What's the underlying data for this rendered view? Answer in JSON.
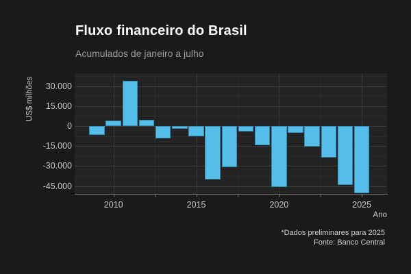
{
  "header": {
    "title": "Fluxo financeiro do Brasil",
    "subtitle": "Acumulados de janeiro a julho"
  },
  "caption": {
    "note": "*Dados preliminares para 2025",
    "source": "Fonte: Banco Central"
  },
  "chart_data": {
    "type": "bar",
    "title": "Fluxo financeiro do Brasil",
    "subtitle": "Acumulados de janeiro a julho",
    "xlabel": "Ano",
    "ylabel": "US$ milhões",
    "categories": [
      2009,
      2010,
      2011,
      2012,
      2013,
      2014,
      2015,
      2016,
      2017,
      2018,
      2019,
      2020,
      2021,
      2022,
      2023,
      2024,
      2025
    ],
    "values": [
      -6500,
      4100,
      34000,
      4600,
      -9000,
      -2000,
      -7500,
      -40000,
      -31000,
      -4100,
      -14400,
      -46000,
      -5100,
      -15400,
      -23400,
      -44300,
      -50200
    ],
    "ylim": [
      -50900,
      39600
    ],
    "xlim": [
      2008.65,
      2025.9
    ],
    "grid": true,
    "legend": false,
    "y_major_ticks": [
      {
        "label": "30.000",
        "value": 30000
      },
      {
        "label": "15.000",
        "value": 15000
      },
      {
        "label": "0",
        "value": 0
      },
      {
        "label": "-15.000",
        "value": -15000
      },
      {
        "label": "-30.000",
        "value": -30000
      },
      {
        "label": "-45.000",
        "value": -45000
      }
    ],
    "y_minor_gridlines": [
      37500,
      22500,
      7500,
      -7500,
      -22500,
      -37500
    ],
    "x_major_ticks": [
      {
        "label": "2010",
        "value": 2010
      },
      {
        "label": "2015",
        "value": 2015
      },
      {
        "label": "2020",
        "value": 2020
      },
      {
        "label": "2025",
        "value": 2025
      }
    ],
    "x_minor_ticks": [
      2012.5,
      2017.5,
      2022.5
    ],
    "bar_color": "#55beea"
  },
  "colors": {
    "background": "#1a1a1a",
    "panel": "#232323",
    "grid_major": "#3b3b3b",
    "grid_minor": "#2c2c2c",
    "axis": "#7d7d7d",
    "bar": "#55beea",
    "title_text": "#ffffff",
    "subtitle_text": "#9a9a9a",
    "tick_text": "#c9c9c9"
  }
}
